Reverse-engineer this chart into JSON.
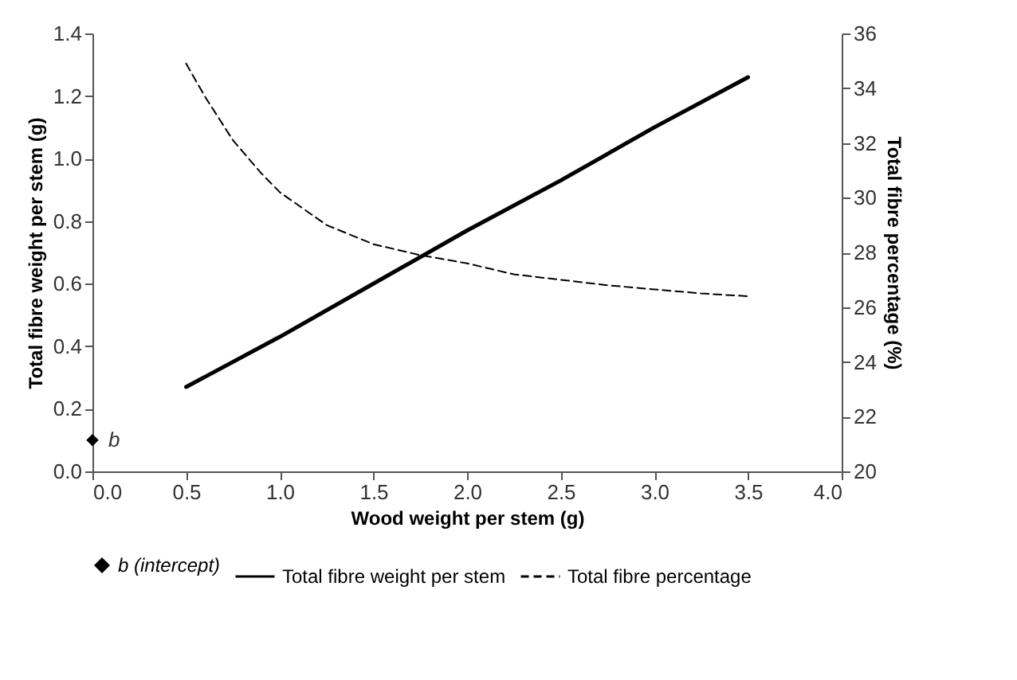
{
  "chart_data": {
    "type": "line",
    "xlabel": "Wood weight per stem (g)",
    "ylabel": "Total fibre weight per stem (g)",
    "y2label": "Total fibre percentage (%)",
    "xlim": [
      0,
      4
    ],
    "xticks": [
      {
        "value": 0,
        "label": "0.0"
      },
      {
        "value": 0.5,
        "label": "0.5"
      },
      {
        "value": 1,
        "label": "1.0"
      },
      {
        "value": 1.5,
        "label": "1.5"
      },
      {
        "value": 2,
        "label": "2.0"
      },
      {
        "value": 2.5,
        "label": "2.5"
      },
      {
        "value": 3,
        "label": "3.0"
      },
      {
        "value": 3.5,
        "label": "3.5"
      },
      {
        "value": 4,
        "label": "4.0"
      }
    ],
    "ylim": [
      0,
      1.4
    ],
    "yticks": [
      {
        "value": 0,
        "label": "0.0"
      },
      {
        "value": 0.2,
        "label": "0.2"
      },
      {
        "value": 0.4,
        "label": "0.4"
      },
      {
        "value": 0.6,
        "label": "0.6"
      },
      {
        "value": 0.8,
        "label": "0.8"
      },
      {
        "value": 1,
        "label": "1.0"
      },
      {
        "value": 1.2,
        "label": "1.2"
      },
      {
        "value": 1.4,
        "label": "1.4"
      }
    ],
    "y2lim": [
      20,
      36
    ],
    "y2ticks": [
      20,
      22,
      24,
      26,
      28,
      30,
      32,
      34,
      36
    ],
    "series": [
      {
        "name": "b (intercept)",
        "type": "scatter",
        "marker": "diamond",
        "color": "#000000",
        "x": [
          0
        ],
        "values": [
          0.1
        ]
      },
      {
        "name": "Total fibre weight per stem",
        "line_style": "solid",
        "color": "#000000",
        "x": [
          0.5,
          1.0,
          1.5,
          2.0,
          2.5,
          3.0,
          3.5
        ],
        "values": [
          0.27,
          0.43,
          0.6,
          0.77,
          0.93,
          1.1,
          1.26
        ]
      },
      {
        "name": "Total fibre percentage",
        "axis": "y2",
        "line_style": "dashed",
        "color": "#000000",
        "x": [
          0.5,
          0.6,
          0.75,
          0.9,
          1.0,
          1.25,
          1.5,
          1.75,
          2.0,
          2.25,
          2.5,
          2.75,
          3.0,
          3.25,
          3.5
        ],
        "values": [
          34.9,
          33.7,
          32.1,
          30.9,
          30.2,
          29.0,
          28.3,
          27.9,
          27.6,
          27.2,
          27.0,
          26.8,
          26.65,
          26.5,
          26.4
        ]
      }
    ],
    "annotations": [
      {
        "text": "b",
        "x": 0,
        "y": 0.1
      }
    ],
    "legend": "bottom",
    "grid": false
  }
}
